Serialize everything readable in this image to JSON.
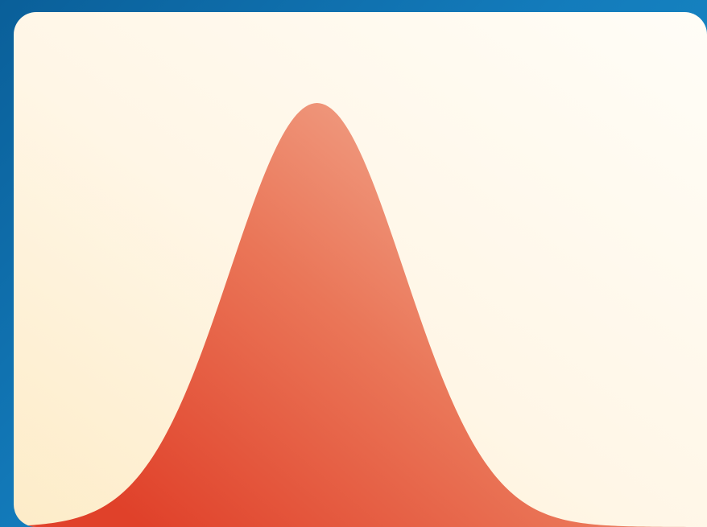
{
  "chart_data": {
    "type": "area",
    "title": "",
    "xlabel": "",
    "ylabel": "",
    "distribution": "normal",
    "mean": 0,
    "std": 1,
    "xlim": [
      -3.5,
      4.5
    ],
    "ylim": [
      0,
      0.43
    ],
    "grid": false,
    "legend": "none",
    "axes_visible": false,
    "series": [
      {
        "fill_gradient": [
          "#e0412a",
          "#ea7658",
          "#f3b097"
        ]
      }
    ]
  },
  "colors": {
    "backdrop": "#137bbb",
    "card_background": "#fff6e6",
    "curve_fill_dark": "#e0412a",
    "curve_fill_light": "#f3b097"
  }
}
